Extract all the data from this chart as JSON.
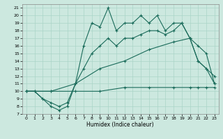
{
  "title": "",
  "xlabel": "Humidex (Indice chaleur)",
  "bg_color": "#cce8df",
  "line_color": "#1a6b5a",
  "grid_color": "#aad4c8",
  "xlim": [
    -0.5,
    23.5
  ],
  "ylim": [
    7,
    21.5
  ],
  "yticks": [
    7,
    8,
    9,
    10,
    11,
    12,
    13,
    14,
    15,
    16,
    17,
    18,
    19,
    20,
    21
  ],
  "xticks": [
    0,
    1,
    2,
    3,
    4,
    5,
    6,
    7,
    8,
    9,
    10,
    11,
    12,
    13,
    14,
    15,
    16,
    17,
    18,
    19,
    20,
    21,
    22,
    23
  ],
  "line1_x": [
    0,
    1,
    2,
    3,
    4,
    5,
    6,
    7,
    8,
    9,
    10,
    11,
    12,
    13,
    14,
    15,
    16,
    17,
    18,
    19,
    20,
    21,
    22,
    23
  ],
  "line1_y": [
    10,
    10,
    9,
    8,
    7.5,
    8,
    11,
    16,
    19,
    18.5,
    21,
    18,
    19,
    19,
    20,
    19,
    20,
    18,
    19,
    19,
    17,
    14,
    13,
    12
  ],
  "line2_x": [
    0,
    1,
    2,
    3,
    4,
    5,
    6,
    7,
    8,
    9,
    10,
    11,
    12,
    13,
    14,
    15,
    16,
    17,
    18,
    19,
    20,
    21,
    22,
    23
  ],
  "line2_y": [
    10,
    10,
    9,
    8.5,
    8,
    8.5,
    11,
    13,
    15,
    16,
    17,
    16,
    17,
    17,
    17.5,
    18,
    18,
    17.5,
    18,
    19,
    17,
    14,
    13,
    11
  ],
  "line3_x": [
    0,
    3,
    6,
    9,
    12,
    15,
    18,
    20,
    21,
    22,
    23
  ],
  "line3_y": [
    10,
    10,
    11,
    13,
    14,
    15.5,
    16.5,
    17,
    16,
    15,
    11
  ],
  "line4_x": [
    0,
    3,
    6,
    9,
    12,
    15,
    18,
    20,
    21,
    22,
    23
  ],
  "line4_y": [
    10,
    10,
    10,
    10,
    10.5,
    10.5,
    10.5,
    10.5,
    10.5,
    10.5,
    10.5
  ]
}
